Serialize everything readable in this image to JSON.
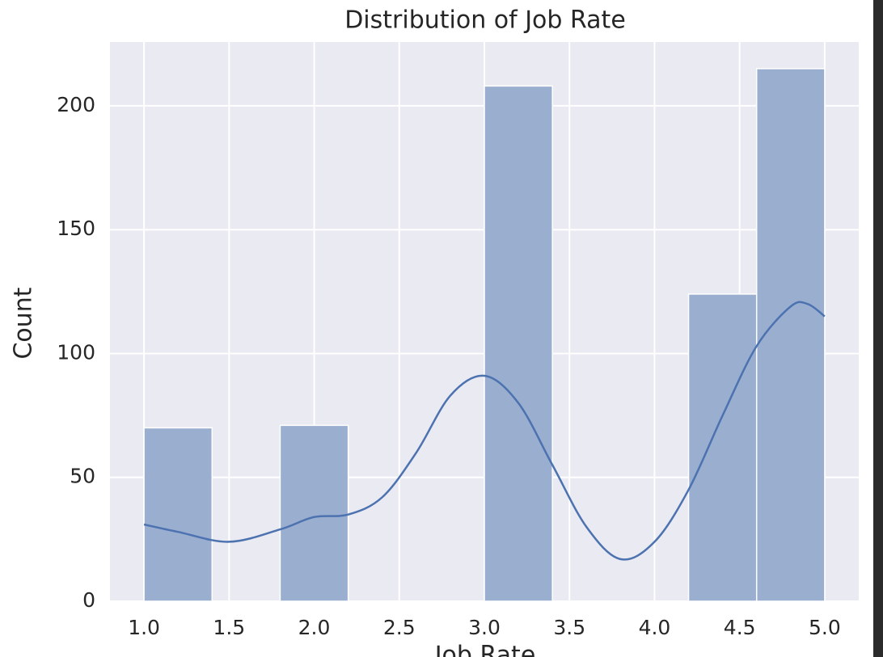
{
  "chart_data": {
    "type": "histogram",
    "title": "Distribution of Job Rate",
    "x_label": "Job Rate",
    "y_label": "Count",
    "bins": [
      1.0,
      1.4,
      1.8,
      2.2,
      2.6,
      3.0,
      3.4,
      3.8,
      4.2,
      4.6,
      5.0
    ],
    "counts": [
      70,
      0,
      71,
      0,
      0,
      208,
      0,
      0,
      124,
      215
    ],
    "color": "#9aaed0",
    "kde": {
      "color": "#4c72b0",
      "x": [
        1.0,
        1.2,
        1.5,
        1.8,
        2.0,
        2.2,
        2.4,
        2.6,
        2.8,
        3.0,
        3.2,
        3.4,
        3.6,
        3.8,
        4.0,
        4.2,
        4.4,
        4.6,
        4.8,
        4.9,
        5.0
      ],
      "y": [
        31,
        28,
        24,
        29,
        34,
        35,
        42,
        60,
        83,
        91,
        80,
        55,
        30,
        17,
        24,
        45,
        75,
        103,
        119,
        120,
        115
      ]
    },
    "xlim": [
      0.8,
      5.2
    ],
    "xticks": [
      {
        "value": 1.0,
        "label": "1.0"
      },
      {
        "value": 1.5,
        "label": "1.5"
      },
      {
        "value": 2.0,
        "label": "2.0"
      },
      {
        "value": 2.5,
        "label": "2.5"
      },
      {
        "value": 3.0,
        "label": "3.0"
      },
      {
        "value": 3.5,
        "label": "3.5"
      },
      {
        "value": 4.0,
        "label": "4.0"
      },
      {
        "value": 4.5,
        "label": "4.5"
      },
      {
        "value": 5.0,
        "label": "5.0"
      }
    ],
    "ylim": [
      0,
      225.75
    ],
    "yticks": [
      0,
      50,
      100,
      150,
      200
    ],
    "grid": true
  }
}
